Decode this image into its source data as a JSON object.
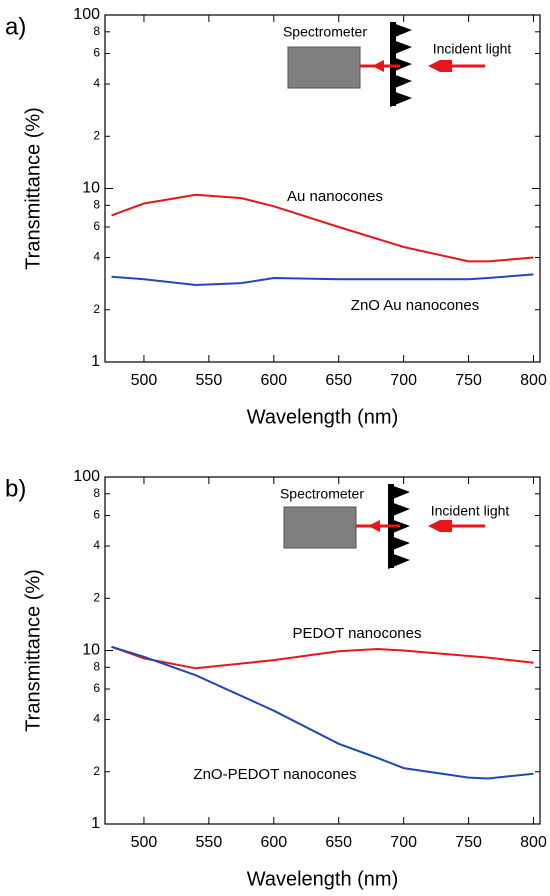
{
  "chart_data": [
    {
      "type": "line",
      "panel_label": "a)",
      "xlabel": "Wavelength (nm)",
      "ylabel": "Transmittance (%)",
      "log_y": true,
      "xlim": [
        470,
        805
      ],
      "ylim": [
        1,
        100
      ],
      "xticks": [
        500,
        550,
        600,
        650,
        700,
        750,
        800
      ],
      "yticks": [
        1,
        2,
        4,
        6,
        8,
        10,
        {
          "value": 20,
          "label": "2"
        },
        {
          "value": 40,
          "label": "4"
        },
        {
          "value": 60,
          "label": "6"
        },
        {
          "value": 80,
          "label": "8"
        },
        100
      ],
      "annotations": [
        "Spectrometer",
        "Incident light"
      ],
      "x": [
        475,
        500,
        540,
        575,
        600,
        650,
        700,
        750,
        765,
        800
      ],
      "series": [
        {
          "name": "Au nanocones",
          "color": "#e8151b",
          "values": [
            7.0,
            8.2,
            9.2,
            8.8,
            7.9,
            6.0,
            4.6,
            3.8,
            3.8,
            4.0
          ]
        },
        {
          "name": "ZnO Au nanocones",
          "color": "#1f47b8",
          "values": [
            3.1,
            3.0,
            2.78,
            2.85,
            3.05,
            3.0,
            3.0,
            3.0,
            3.05,
            3.2
          ]
        }
      ]
    },
    {
      "type": "line",
      "panel_label": "b)",
      "xlabel": "Wavelength (nm)",
      "ylabel": "Transmittance (%)",
      "log_y": true,
      "xlim": [
        470,
        805
      ],
      "ylim": [
        1,
        100
      ],
      "xticks": [
        500,
        550,
        600,
        650,
        700,
        750,
        800
      ],
      "yticks": [
        1,
        2,
        4,
        6,
        8,
        10,
        {
          "value": 20,
          "label": "2"
        },
        {
          "value": 40,
          "label": "4"
        },
        {
          "value": 60,
          "label": "6"
        },
        {
          "value": 80,
          "label": "8"
        },
        100
      ],
      "annotations": [
        "Spectrometer",
        "Incident light"
      ],
      "x": [
        475,
        500,
        540,
        600,
        650,
        680,
        700,
        750,
        765,
        800
      ],
      "series": [
        {
          "name": "PEDOT nanocones",
          "color": "#e8151b",
          "values": [
            10.5,
            9.0,
            7.9,
            8.8,
            9.9,
            10.2,
            10.0,
            9.3,
            9.1,
            8.5
          ]
        },
        {
          "name": "ZnO-PEDOT nanocones",
          "color": "#1f47b8",
          "values": [
            10.5,
            9.2,
            7.2,
            4.5,
            2.9,
            2.4,
            2.1,
            1.85,
            1.83,
            1.95
          ]
        }
      ]
    }
  ]
}
